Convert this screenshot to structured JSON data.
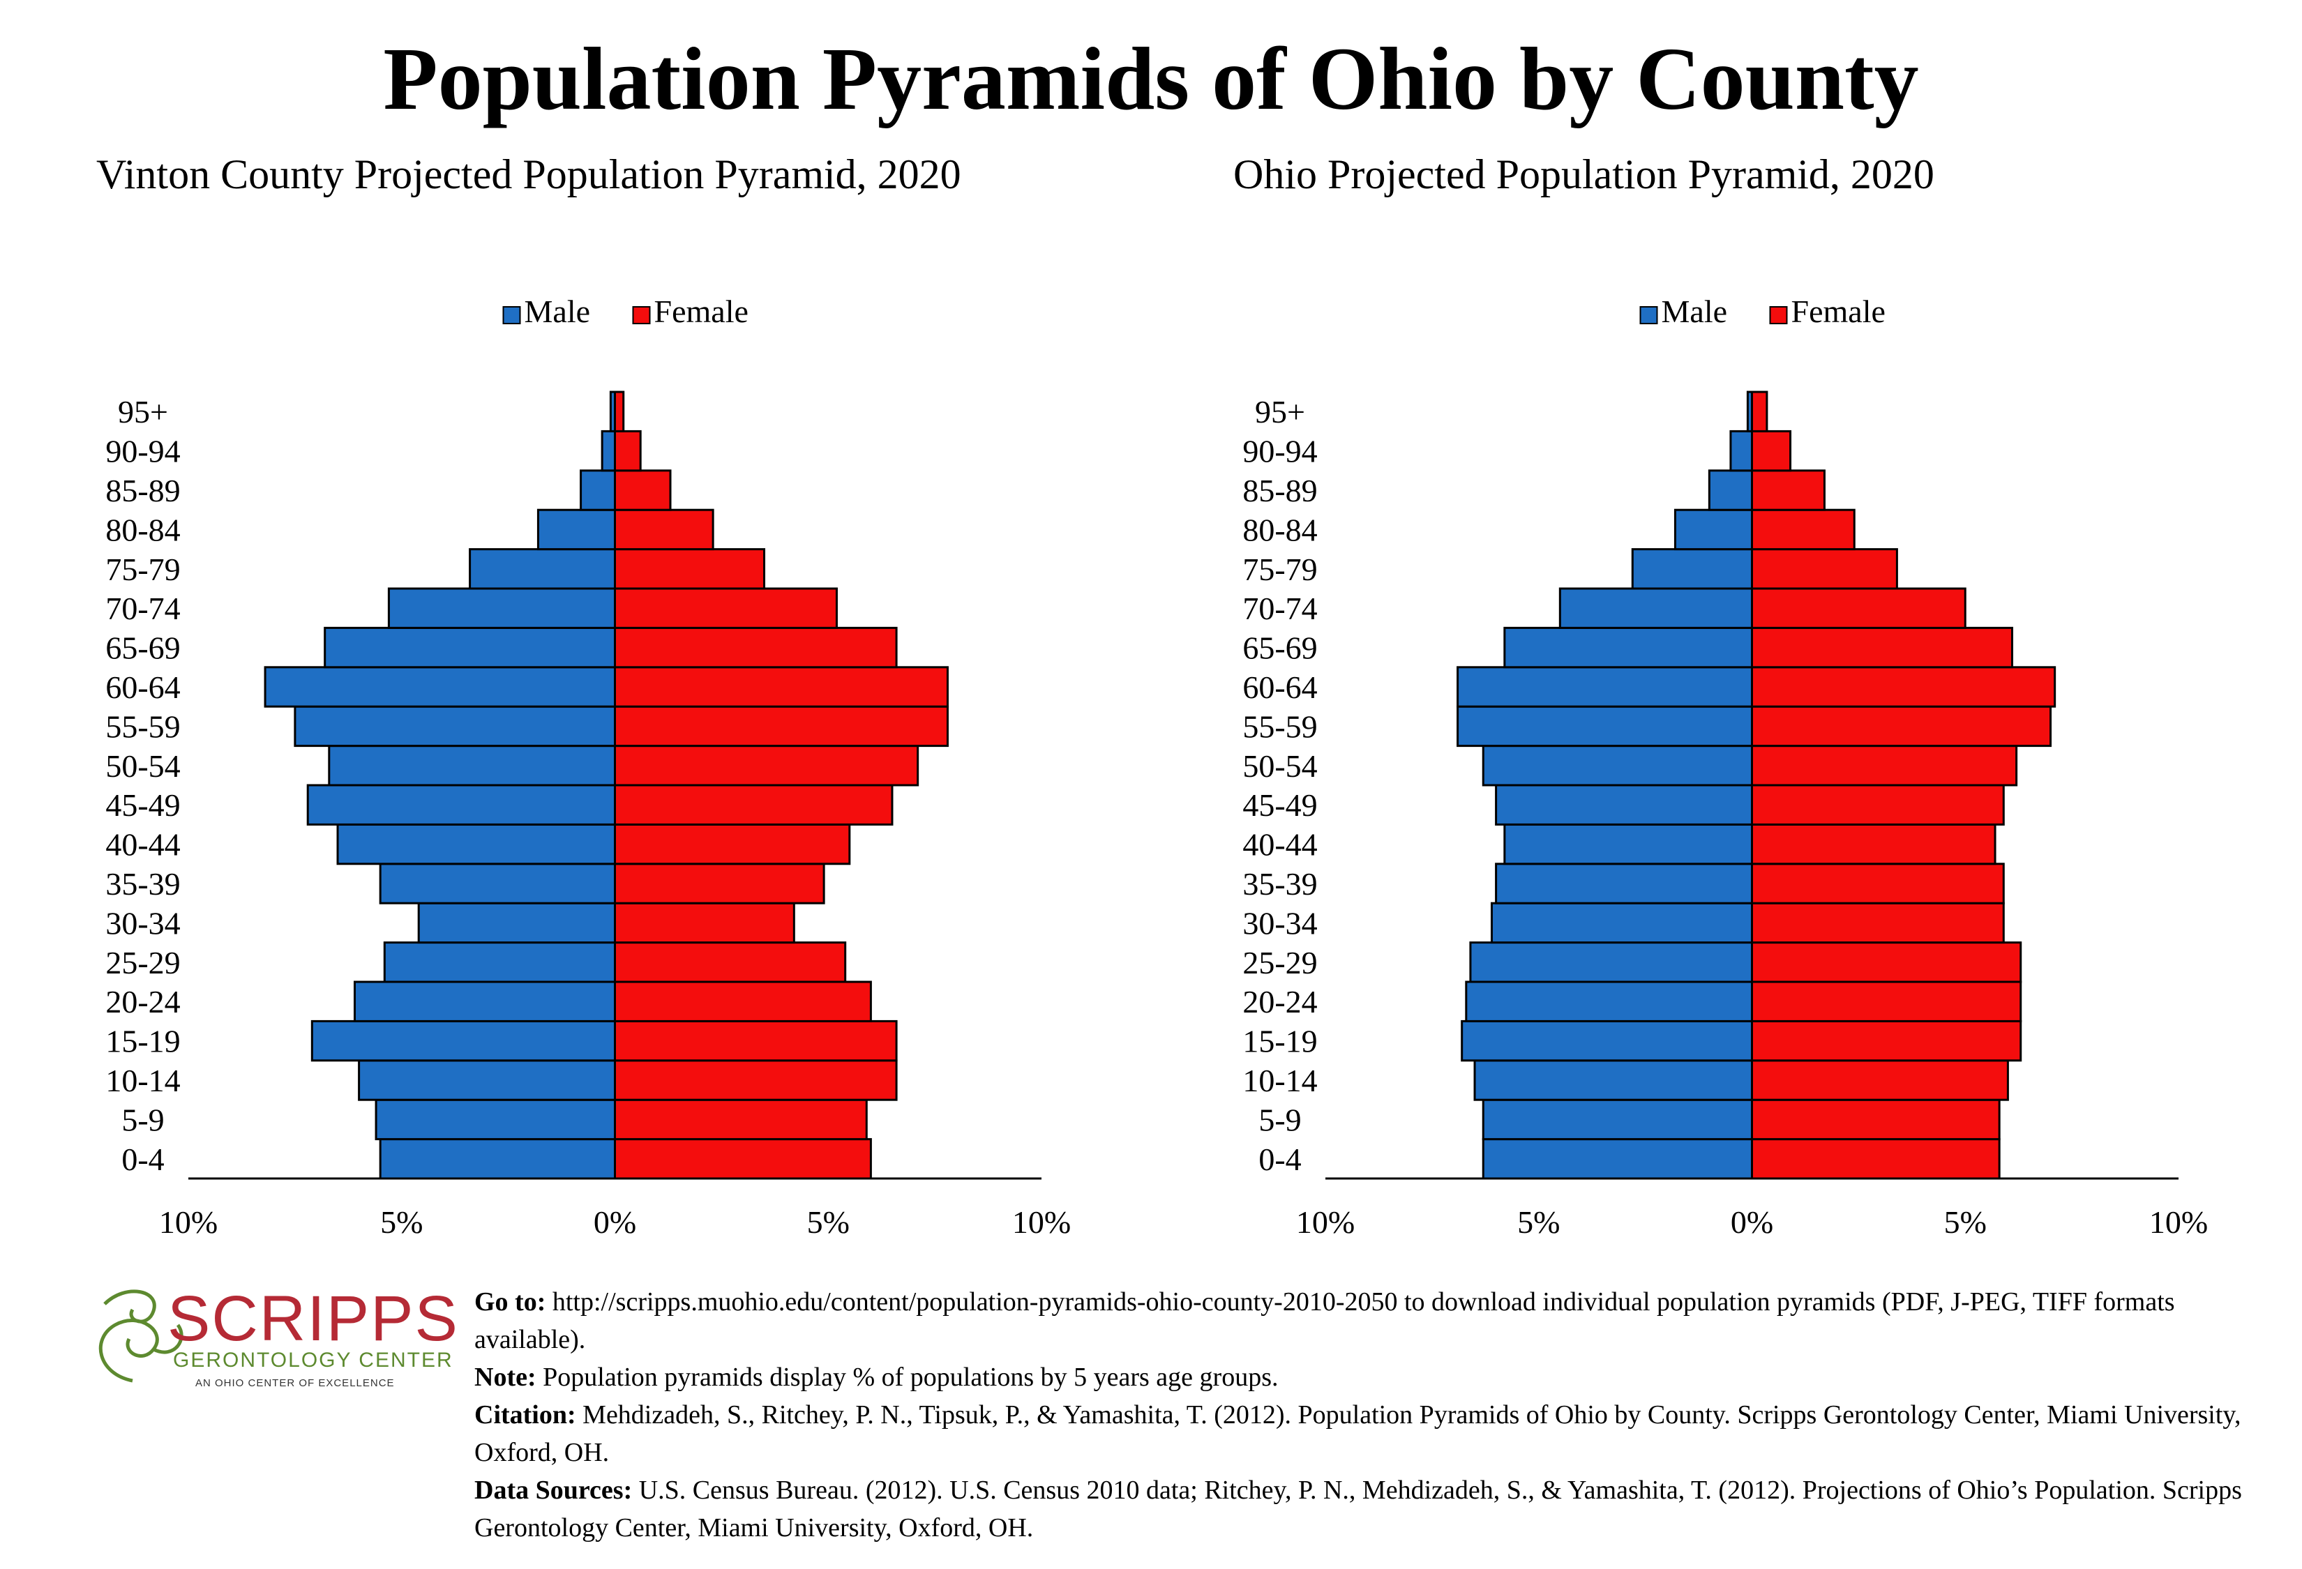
{
  "title": "Population Pyramids of Ohio by County",
  "legend": {
    "male": "Male",
    "female": "Female"
  },
  "colors": {
    "male": "#1f6fc4",
    "female": "#f40d0d",
    "outline": "#000000"
  },
  "chart_data": [
    {
      "type": "bar",
      "title": "Vinton County Projected Population Pyramid, 2020",
      "categories": [
        "0-4",
        "5-9",
        "10-14",
        "15-19",
        "20-24",
        "25-29",
        "30-34",
        "35-39",
        "40-44",
        "45-49",
        "50-54",
        "55-59",
        "60-64",
        "65-69",
        "70-74",
        "75-79",
        "80-84",
        "85-89",
        "90-94",
        "95+"
      ],
      "series": [
        {
          "name": "Male",
          "values": [
            5.5,
            5.6,
            6.0,
            7.1,
            6.1,
            5.4,
            4.6,
            5.5,
            6.5,
            7.2,
            6.7,
            7.5,
            8.2,
            6.8,
            5.3,
            3.4,
            1.8,
            0.8,
            0.3,
            0.1
          ]
        },
        {
          "name": "Female",
          "values": [
            6.0,
            5.9,
            6.6,
            6.6,
            6.0,
            5.4,
            4.2,
            4.9,
            5.5,
            6.5,
            7.1,
            7.8,
            7.8,
            6.6,
            5.2,
            3.5,
            2.3,
            1.3,
            0.6,
            0.2
          ]
        }
      ],
      "xlim": [
        -10,
        10
      ],
      "xticks": [
        "10%",
        "5%",
        "0%",
        "5%",
        "10%"
      ],
      "legend_position": "top-center"
    },
    {
      "type": "bar",
      "title": "Ohio Projected Population Pyramid, 2020",
      "categories": [
        "0-4",
        "5-9",
        "10-14",
        "15-19",
        "20-24",
        "25-29",
        "30-34",
        "35-39",
        "40-44",
        "45-49",
        "50-54",
        "55-59",
        "60-64",
        "65-69",
        "70-74",
        "75-79",
        "80-84",
        "85-89",
        "90-94",
        "95+"
      ],
      "series": [
        {
          "name": "Male",
          "values": [
            6.3,
            6.3,
            6.5,
            6.8,
            6.7,
            6.6,
            6.1,
            6.0,
            5.8,
            6.0,
            6.3,
            6.9,
            6.9,
            5.8,
            4.5,
            2.8,
            1.8,
            1.0,
            0.5,
            0.1
          ]
        },
        {
          "name": "Female",
          "values": [
            5.8,
            5.8,
            6.0,
            6.3,
            6.3,
            6.3,
            5.9,
            5.9,
            5.7,
            5.9,
            6.2,
            7.0,
            7.1,
            6.1,
            5.0,
            3.4,
            2.4,
            1.7,
            0.9,
            0.35
          ]
        }
      ],
      "xlim": [
        -10,
        10
      ],
      "xticks": [
        "10%",
        "5%",
        "0%",
        "5%",
        "10%"
      ],
      "legend_position": "top-center"
    }
  ],
  "logo": {
    "name": "SCRIPPS",
    "line2": "GERONTOLOGY CENTER",
    "line3": "AN OHIO CENTER OF EXCELLENCE"
  },
  "notes": {
    "goto_label": "Go to:",
    "goto_text": "http://scripps.muohio.edu/content/population-pyramids-ohio-county-2010-2050 to download individual population pyramids (PDF, J-PEG, TIFF formats available).",
    "note_label": "Note:",
    "note_text": "Population pyramids display % of populations by 5 years age groups.",
    "citation_label": "Citation:",
    "citation_text": "Mehdizadeh, S., Ritchey, P. N., Tipsuk, P., & Yamashita, T. (2012). Population Pyramids of Ohio by County. Scripps Gerontology Center, Miami University, Oxford, OH.",
    "sources_label": "Data Sources:",
    "sources_text": "U.S. Census Bureau. (2012). U.S. Census 2010 data; Ritchey, P. N., Mehdizadeh, S., & Yamashita, T. (2012). Projections of Ohio’s Population. Scripps Gerontology Center, Miami University, Oxford, OH."
  }
}
